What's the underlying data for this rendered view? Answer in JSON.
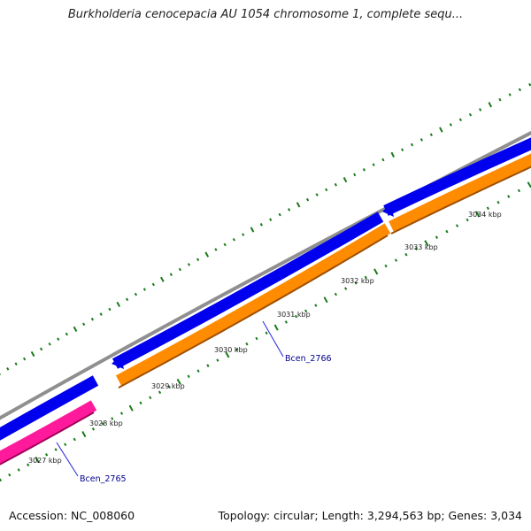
{
  "title": "Burkholderia cenocepacia AU 1054 chromosome 1, complete sequ...",
  "footer": {
    "accession": "Accession: NC_008060",
    "summary": "Topology: circular; Length: 3,294,563 bp; Genes: 3,034"
  },
  "tick_labels": [
    "3027 kbp",
    "3028 kbp",
    "3029 kbp",
    "3030 kbp",
    "3031 kbp",
    "3032 kbp",
    "3033 kbp",
    "3034 kbp"
  ],
  "gene_labels": [
    "Bcen_2765",
    "Bcen_2766"
  ],
  "colors": {
    "backbone": "#8f8f8f",
    "forward_gene": "#0000ee",
    "reverse_gene": "#ff8c00",
    "reverse_gene_alt": "#ff1a9c",
    "tick": "#1a7a1a",
    "gene_label": "#00008b",
    "leader_line": "#2222dd"
  }
}
